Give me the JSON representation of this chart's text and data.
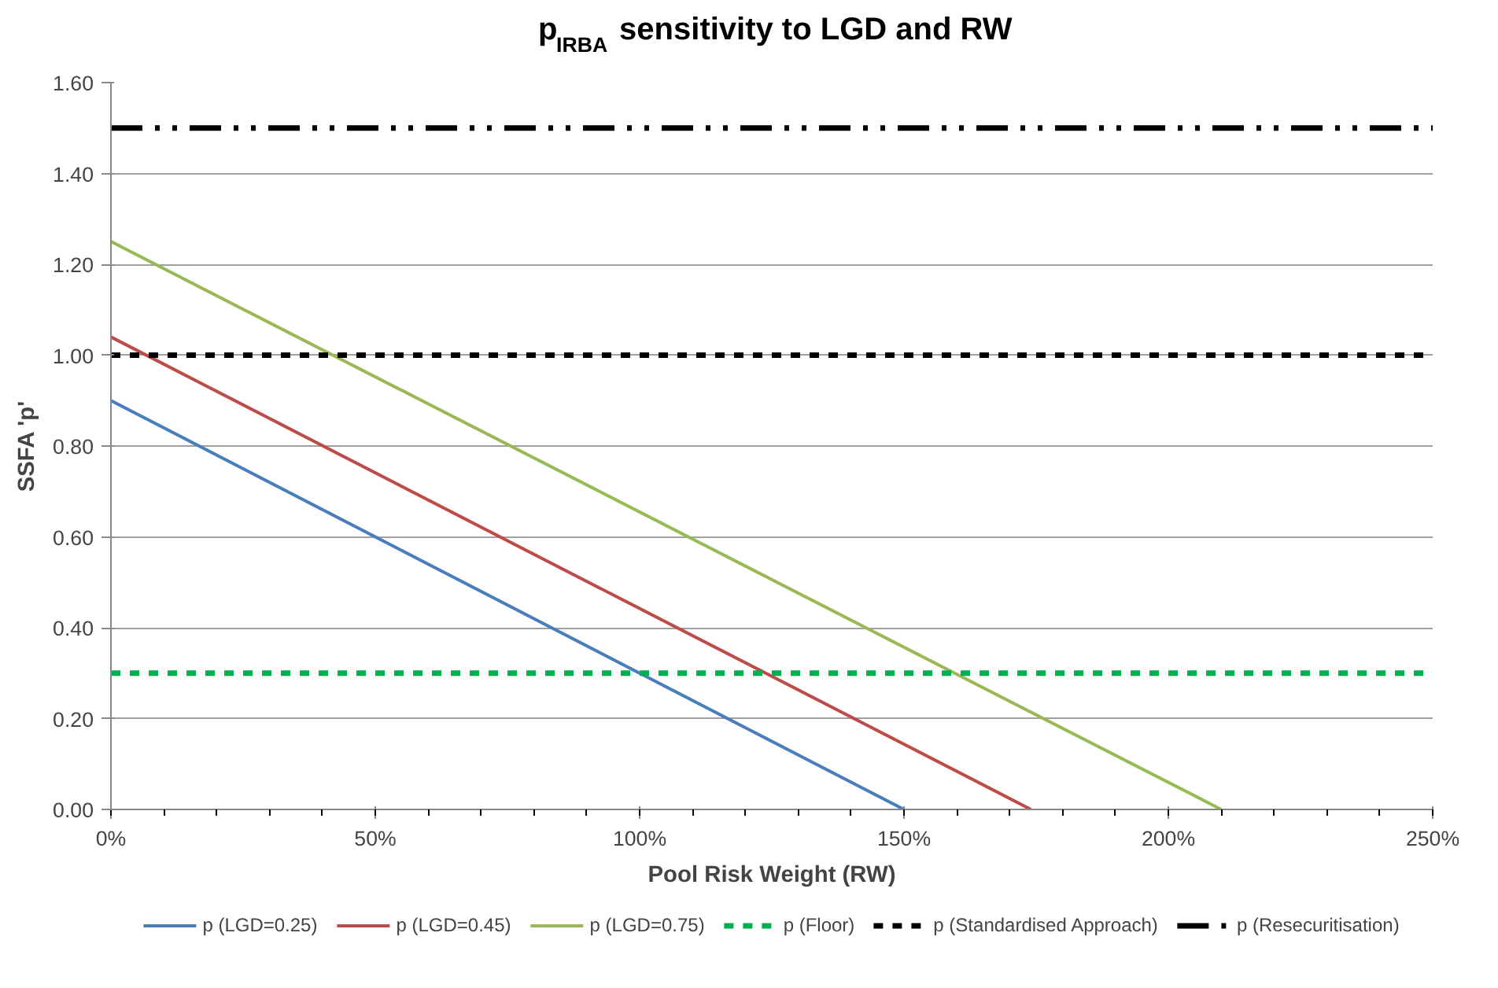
{
  "chart_data": {
    "type": "line",
    "title": "p$_{IRBA}$ sensitivity to LGD and RW",
    "xlabel": "Pool Risk Weight (RW)",
    "ylabel": "SSFA 'p'",
    "xlim": [
      0,
      250
    ],
    "xticks": [
      {
        "value": 0,
        "label": "0%"
      },
      {
        "value": 50,
        "label": "50%"
      },
      {
        "value": 100,
        "label": "100%"
      },
      {
        "value": 150,
        "label": "150%"
      },
      {
        "value": 200,
        "label": "200%"
      },
      {
        "value": 250,
        "label": "250%"
      }
    ],
    "ylim": [
      0,
      1.6
    ],
    "yticks": [
      {
        "value": 0,
        "label": "0.00"
      },
      {
        "value": 0.2,
        "label": "0.20"
      },
      {
        "value": 0.4,
        "label": "0.40"
      },
      {
        "value": 0.6,
        "label": "0.60"
      },
      {
        "value": 0.8,
        "label": "0.80"
      },
      {
        "value": 1.0,
        "label": "1.00"
      },
      {
        "value": 1.2,
        "label": "1.20"
      },
      {
        "value": 1.4,
        "label": "1.40"
      },
      {
        "value": 1.6,
        "label": "1.60"
      }
    ],
    "grid": "y",
    "legend": "bottom",
    "series": [
      {
        "name": "p (LGD=0.25)",
        "color": "#4a7ebb",
        "x": [
          0,
          150
        ],
        "values": [
          0.9,
          0
        ],
        "line_style": "solid"
      },
      {
        "name": "p (LGD=0.45)",
        "color": "#be4b48",
        "x": [
          0,
          174
        ],
        "values": [
          1.04,
          0
        ],
        "line_style": "solid"
      },
      {
        "name": "p (LGD=0.75)",
        "color": "#98b954",
        "x": [
          0,
          210
        ],
        "values": [
          1.25,
          0
        ],
        "line_style": "solid"
      },
      {
        "name": "p (Floor)",
        "color": "#00b050",
        "x": [
          0,
          250
        ],
        "values": [
          0.3,
          0.3
        ],
        "line_style": "dashed"
      },
      {
        "name": "p (Standardised Approach)",
        "color": "#000000",
        "x": [
          0,
          250
        ],
        "values": [
          1.0,
          1.0
        ],
        "line_style": "dashed"
      },
      {
        "name": "p (Resecuritisation)",
        "color": "#000000",
        "x": [
          0,
          250
        ],
        "values": [
          1.5,
          1.5
        ],
        "line_style": "dashdotdot"
      }
    ]
  }
}
